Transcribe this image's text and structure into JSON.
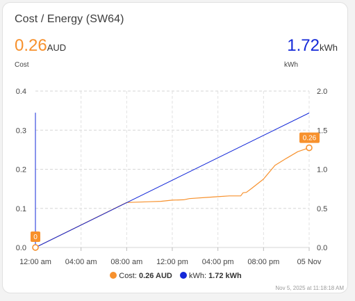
{
  "card": {
    "title": "Cost / Energy (SW64)",
    "timestamp": "Nov 5, 2025 at 11:18:18 AM"
  },
  "stats": {
    "cost": {
      "value": "0.26",
      "unit": "AUD",
      "label": "Cost",
      "color": "#f7912d"
    },
    "energy": {
      "value": "1.72",
      "unit": "kWh",
      "label": "kWh",
      "color": "#1328d8"
    }
  },
  "legend": {
    "cost_prefix": "Cost: ",
    "cost_value": "0.26 AUD",
    "energy_prefix": "kWh: ",
    "energy_value": "1.72 kWh"
  },
  "chart_data": {
    "type": "line",
    "x_tick_labels": [
      "12:00 am",
      "04:00 am",
      "08:00 am",
      "12:00 pm",
      "04:00 pm",
      "08:00 pm",
      "05 Nov"
    ],
    "x_tick_hours": [
      0,
      4,
      8,
      12,
      16,
      20,
      24
    ],
    "y_left_ticks": [
      "0.0",
      "0.1",
      "0.2",
      "0.3",
      "0.4"
    ],
    "y_left_range": [
      0,
      0.4
    ],
    "y_right_ticks": [
      "0.0",
      "0.5",
      "1.0",
      "1.5",
      "2.0"
    ],
    "y_right_range": [
      0,
      2.0
    ],
    "grid": true,
    "series": [
      {
        "name": "Cost",
        "axis": "left",
        "color": "#f7912d",
        "points": [
          [
            0,
            0
          ],
          [
            8,
            0.115
          ],
          [
            10,
            0.117
          ],
          [
            11,
            0.118
          ],
          [
            12,
            0.121
          ],
          [
            13,
            0.122
          ],
          [
            13.5,
            0.125
          ],
          [
            15,
            0.128
          ],
          [
            16,
            0.13
          ],
          [
            17,
            0.132
          ],
          [
            18,
            0.132
          ],
          [
            18.2,
            0.14
          ],
          [
            18.5,
            0.141
          ],
          [
            19,
            0.152
          ],
          [
            20,
            0.175
          ],
          [
            21,
            0.21
          ],
          [
            22,
            0.228
          ],
          [
            23,
            0.245
          ],
          [
            24,
            0.255
          ]
        ],
        "start_label": "0",
        "end_label": "0.26"
      },
      {
        "name": "kWh",
        "axis": "right",
        "color": "#1328d8",
        "points": [
          [
            0,
            0
          ],
          [
            0,
            1.72
          ],
          [
            0,
            0
          ],
          [
            24,
            1.72
          ]
        ]
      }
    ]
  }
}
